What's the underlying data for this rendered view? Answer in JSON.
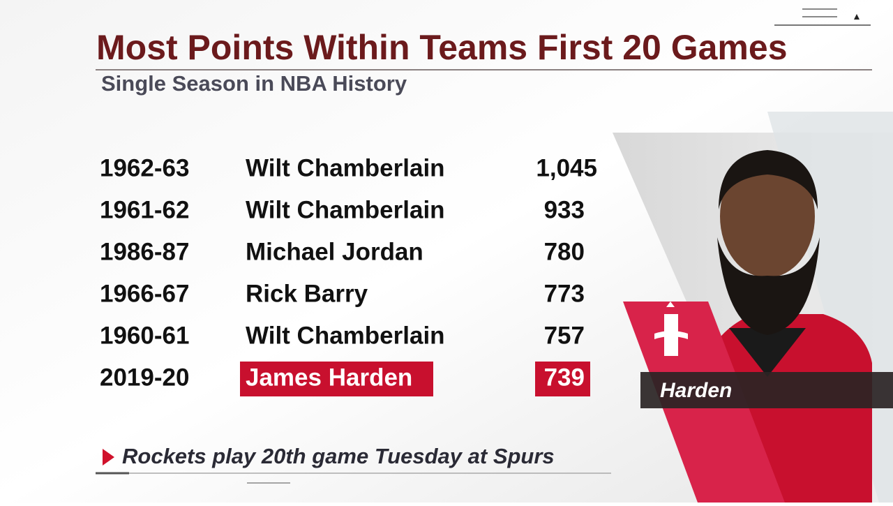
{
  "header": {
    "title": "Most Points Within Teams First 20 Games",
    "subtitle": "Single Season in NBA History"
  },
  "table": {
    "rows": [
      [
        "1962-63",
        "Wilt Chamberlain",
        "1,045"
      ],
      [
        "1961-62",
        "Wilt Chamberlain",
        "933"
      ],
      [
        "1986-87",
        "Michael Jordan",
        "780"
      ],
      [
        "1966-67",
        "Rick Barry",
        "773"
      ],
      [
        "1960-61",
        "Wilt Chamberlain",
        "757"
      ],
      [
        "2019-20",
        "James Harden",
        "739"
      ]
    ],
    "highlight_row": 5
  },
  "photo": {
    "caption": "Harden"
  },
  "footnote": "Rockets play 20th game Tuesday at Spurs"
}
